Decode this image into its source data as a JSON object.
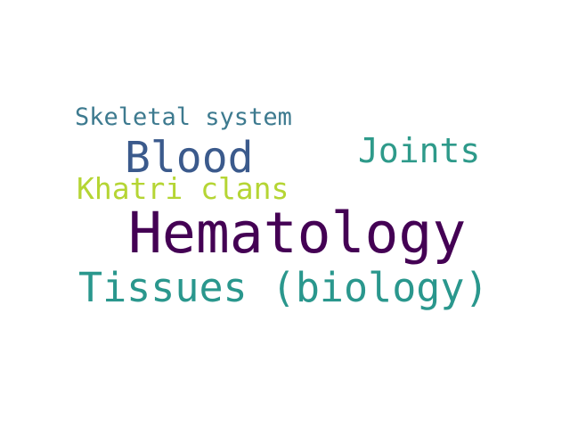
{
  "words": [
    {
      "text": "Hematology",
      "color": "#440154"
    },
    {
      "text": "Tissues (biology)",
      "color": "#2a978d"
    },
    {
      "text": "Blood",
      "color": "#3b5a8c"
    },
    {
      "text": "Joints",
      "color": "#2e9a8a"
    },
    {
      "text": "Khatri clans",
      "color": "#b5d534"
    },
    {
      "text": "Skeletal system",
      "color": "#3d7a8f"
    }
  ]
}
